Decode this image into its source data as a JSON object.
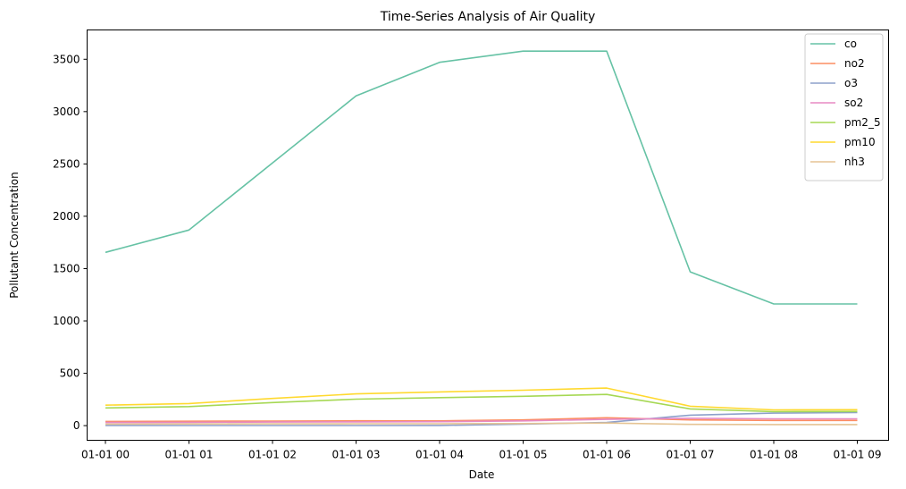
{
  "chart_data": {
    "type": "line",
    "title": "Time-Series Analysis of Air Quality",
    "xlabel": "Date",
    "ylabel": "Pollutant Concentration",
    "categories": [
      "01-01 00",
      "01-01 01",
      "01-01 02",
      "01-01 03",
      "01-01 04",
      "01-01 05",
      "01-01 06",
      "01-01 07",
      "01-01 08",
      "01-01 09"
    ],
    "ylim": [
      -140,
      3780
    ],
    "yticks": [
      0,
      500,
      1000,
      1500,
      2000,
      2500,
      3000,
      3500
    ],
    "grid": false,
    "legend_position": "top-right",
    "series": [
      {
        "name": "co",
        "color": "#66c2a5",
        "values": [
          1655,
          1869,
          2510,
          3150,
          3471,
          3578,
          3578,
          1469,
          1162,
          1162
        ]
      },
      {
        "name": "no2",
        "color": "#fc8d62",
        "values": [
          40,
          42,
          44,
          46,
          45,
          55,
          75,
          55,
          50,
          50
        ]
      },
      {
        "name": "o3",
        "color": "#8da0cb",
        "values": [
          2,
          1,
          1,
          1,
          2,
          15,
          30,
          100,
          120,
          125
        ]
      },
      {
        "name": "so2",
        "color": "#e78ac3",
        "values": [
          30,
          32,
          34,
          36,
          38,
          45,
          60,
          70,
          65,
          65
        ]
      },
      {
        "name": "pm2_5",
        "color": "#a6d854",
        "values": [
          169,
          182,
          220,
          253,
          267,
          280,
          298,
          160,
          133,
          135
        ]
      },
      {
        "name": "pm10",
        "color": "#ffd92f",
        "values": [
          196,
          211,
          260,
          303,
          322,
          338,
          359,
          185,
          150,
          152
        ]
      },
      {
        "name": "nh3",
        "color": "#e5c494",
        "values": [
          15,
          16,
          17,
          18,
          18,
          20,
          25,
          12,
          10,
          10
        ]
      }
    ]
  }
}
